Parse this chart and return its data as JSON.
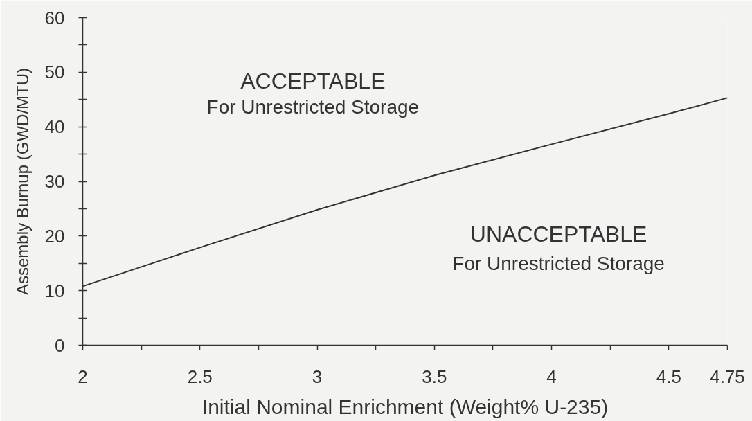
{
  "chart_data": {
    "type": "line",
    "xlabel": "Initial Nominal Enrichment (Weight% U-235)",
    "ylabel": "Assembly Burnup (GWD/MTU)",
    "x": [
      2,
      2.5,
      3,
      3.5,
      4,
      4.5,
      4.75
    ],
    "series": [
      {
        "color": "#333333",
        "values": [
          10.8,
          17.9,
          24.8,
          31.1,
          36.8,
          42.4,
          45.3
        ]
      }
    ],
    "xlim": [
      2,
      4.75
    ],
    "xticks": [
      2,
      {
        "value": 2.25,
        "label": null
      },
      2.5,
      {
        "value": 2.75,
        "label": null
      },
      3,
      {
        "value": 3.25,
        "label": null
      },
      3.5,
      {
        "value": 3.75,
        "label": null
      },
      4,
      {
        "value": 4.25,
        "label": null
      },
      4.5,
      4.75
    ],
    "ylim": [
      0,
      60
    ],
    "yticks": [
      0,
      {
        "value": 5,
        "label": null
      },
      10,
      {
        "value": 15,
        "label": null
      },
      20,
      {
        "value": 25,
        "label": null
      },
      30,
      {
        "value": 35,
        "label": null
      },
      40,
      {
        "value": 45,
        "label": null
      },
      50,
      {
        "value": 55,
        "label": null
      },
      60
    ],
    "line_style": "solid",
    "annotations": [
      "ACCEPTABLE",
      "For Unrestricted Storage",
      "UNACCEPTABLE",
      "For Unrestricted Storage"
    ]
  }
}
